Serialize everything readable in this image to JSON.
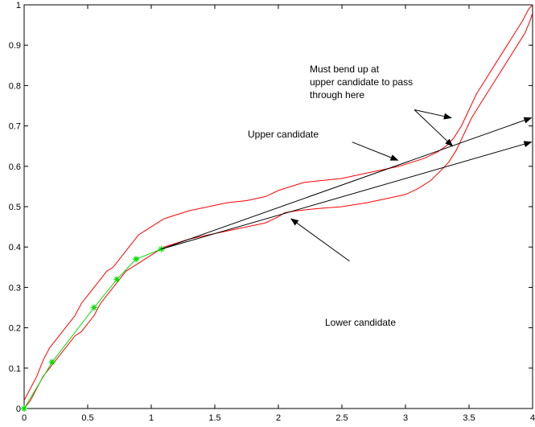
{
  "chart_data": {
    "type": "line",
    "title": "",
    "xlabel": "",
    "ylabel": "",
    "xlim": [
      0,
      4
    ],
    "ylim": [
      0,
      1
    ],
    "grid": false,
    "xticks": [
      0,
      0.5,
      1,
      1.5,
      2,
      2.5,
      3,
      3.5,
      4
    ],
    "xtick_labels": [
      "0",
      "0.5",
      "1",
      "1.5",
      "2",
      "2.5",
      "3",
      "3.5",
      "4"
    ],
    "yticks": [
      0,
      0.1,
      0.2,
      0.3,
      0.4,
      0.5,
      0.6,
      0.7,
      0.8,
      0.9,
      1
    ],
    "ytick_labels": [
      "0",
      "0.1",
      "0.2",
      "0.3",
      "0.4",
      "0.5",
      "0.6",
      "0.7",
      "0.8",
      "0.9",
      "1"
    ],
    "colors": {
      "bounds": "#ff0000",
      "path": "#00dd00",
      "arrows": "#000000",
      "axes": "#000000"
    },
    "series": [
      {
        "role": "upper-bound",
        "points": [
          [
            0.0,
            0.02
          ],
          [
            0.05,
            0.05
          ],
          [
            0.1,
            0.08
          ],
          [
            0.15,
            0.12
          ],
          [
            0.2,
            0.15
          ],
          [
            0.25,
            0.17
          ],
          [
            0.3,
            0.19
          ],
          [
            0.35,
            0.21
          ],
          [
            0.4,
            0.23
          ],
          [
            0.45,
            0.26
          ],
          [
            0.5,
            0.28
          ],
          [
            0.55,
            0.3
          ],
          [
            0.6,
            0.32
          ],
          [
            0.65,
            0.34
          ],
          [
            0.7,
            0.35
          ],
          [
            0.75,
            0.37
          ],
          [
            0.8,
            0.39
          ],
          [
            0.85,
            0.41
          ],
          [
            0.9,
            0.43
          ],
          [
            0.95,
            0.44
          ],
          [
            1.0,
            0.45
          ],
          [
            1.05,
            0.46
          ],
          [
            1.1,
            0.47
          ],
          [
            1.2,
            0.48
          ],
          [
            1.3,
            0.49
          ],
          [
            1.45,
            0.5
          ],
          [
            1.6,
            0.51
          ],
          [
            1.75,
            0.515
          ],
          [
            1.9,
            0.525
          ],
          [
            2.0,
            0.54
          ],
          [
            2.1,
            0.55
          ],
          [
            2.2,
            0.56
          ],
          [
            2.35,
            0.565
          ],
          [
            2.5,
            0.57
          ],
          [
            2.65,
            0.58
          ],
          [
            2.8,
            0.59
          ],
          [
            2.95,
            0.6
          ],
          [
            3.05,
            0.61
          ],
          [
            3.15,
            0.62
          ],
          [
            3.25,
            0.635
          ],
          [
            3.32,
            0.65
          ],
          [
            3.38,
            0.67
          ],
          [
            3.44,
            0.7
          ],
          [
            3.5,
            0.74
          ],
          [
            3.56,
            0.78
          ],
          [
            3.62,
            0.81
          ],
          [
            3.68,
            0.84
          ],
          [
            3.74,
            0.87
          ],
          [
            3.8,
            0.9
          ],
          [
            3.86,
            0.93
          ],
          [
            3.92,
            0.96
          ],
          [
            3.97,
            0.99
          ],
          [
            4.0,
            1.0
          ]
        ]
      },
      {
        "role": "lower-bound",
        "points": [
          [
            0.0,
            0.0
          ],
          [
            0.05,
            0.02
          ],
          [
            0.1,
            0.05
          ],
          [
            0.15,
            0.08
          ],
          [
            0.2,
            0.1
          ],
          [
            0.25,
            0.12
          ],
          [
            0.3,
            0.14
          ],
          [
            0.35,
            0.16
          ],
          [
            0.4,
            0.18
          ],
          [
            0.45,
            0.19
          ],
          [
            0.5,
            0.21
          ],
          [
            0.55,
            0.23
          ],
          [
            0.6,
            0.26
          ],
          [
            0.65,
            0.28
          ],
          [
            0.7,
            0.3
          ],
          [
            0.75,
            0.32
          ],
          [
            0.8,
            0.34
          ],
          [
            0.85,
            0.35
          ],
          [
            0.9,
            0.36
          ],
          [
            0.95,
            0.37
          ],
          [
            1.0,
            0.38
          ],
          [
            1.05,
            0.39
          ],
          [
            1.1,
            0.4
          ],
          [
            1.2,
            0.41
          ],
          [
            1.3,
            0.42
          ],
          [
            1.45,
            0.43
          ],
          [
            1.6,
            0.44
          ],
          [
            1.75,
            0.45
          ],
          [
            1.9,
            0.46
          ],
          [
            2.0,
            0.475
          ],
          [
            2.05,
            0.485
          ],
          [
            2.15,
            0.49
          ],
          [
            2.3,
            0.495
          ],
          [
            2.5,
            0.5
          ],
          [
            2.7,
            0.51
          ],
          [
            2.85,
            0.52
          ],
          [
            3.0,
            0.53
          ],
          [
            3.1,
            0.545
          ],
          [
            3.2,
            0.565
          ],
          [
            3.28,
            0.59
          ],
          [
            3.34,
            0.61
          ],
          [
            3.4,
            0.64
          ],
          [
            3.46,
            0.68
          ],
          [
            3.52,
            0.72
          ],
          [
            3.58,
            0.75
          ],
          [
            3.64,
            0.78
          ],
          [
            3.7,
            0.81
          ],
          [
            3.76,
            0.84
          ],
          [
            3.82,
            0.87
          ],
          [
            3.88,
            0.9
          ],
          [
            3.94,
            0.93
          ],
          [
            3.98,
            0.96
          ],
          [
            4.0,
            0.98
          ]
        ]
      },
      {
        "role": "path",
        "marker": "*",
        "points": [
          [
            0.0,
            0.0
          ],
          [
            0.22,
            0.115
          ],
          [
            0.55,
            0.25
          ],
          [
            0.73,
            0.32
          ],
          [
            0.88,
            0.37
          ],
          [
            1.08,
            0.395
          ]
        ]
      }
    ],
    "arrows": [
      {
        "name": "upper-candidate-line",
        "from": [
          1.08,
          0.395
        ],
        "to": [
          3.99,
          0.72
        ]
      },
      {
        "name": "lower-candidate-line",
        "from": [
          1.08,
          0.395
        ],
        "to": [
          3.99,
          0.66
        ]
      },
      {
        "name": "upper-candidate-pointer",
        "from": [
          2.58,
          0.66
        ],
        "to": [
          2.94,
          0.615
        ]
      },
      {
        "name": "lower-candidate-pointer",
        "from": [
          2.56,
          0.365
        ],
        "to": [
          2.1,
          0.47
        ]
      },
      {
        "name": "must-bend-pointer-a",
        "from": [
          3.07,
          0.74
        ],
        "to": [
          3.36,
          0.72
        ]
      },
      {
        "name": "must-bend-pointer-b",
        "from": [
          3.07,
          0.74
        ],
        "to": [
          3.37,
          0.65
        ]
      }
    ],
    "annotations": {
      "upper_candidate": "Upper candidate",
      "lower_candidate": "Lower candidate",
      "must_bend_line1": "Must bend up at",
      "must_bend_line2": "upper candidate to pass",
      "must_bend_line3": "through here"
    }
  }
}
